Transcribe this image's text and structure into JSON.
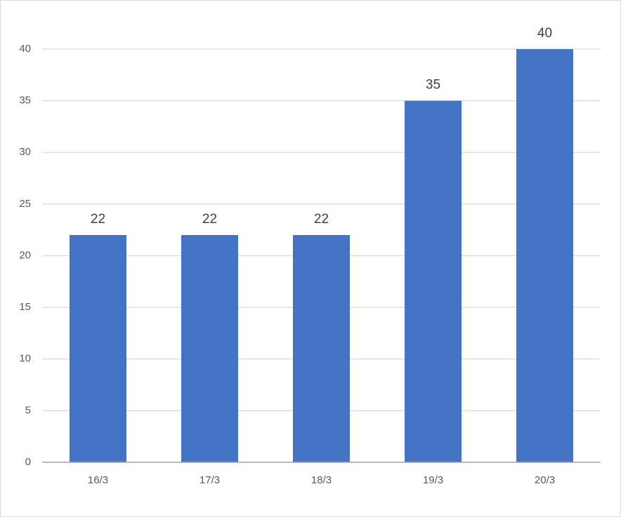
{
  "chart_data": {
    "type": "bar",
    "categories": [
      "16/3",
      "17/3",
      "18/3",
      "19/3",
      "20/3"
    ],
    "values": [
      22,
      22,
      22,
      35,
      40
    ],
    "color": "#4472c4",
    "ylim": [
      0,
      40
    ],
    "yticks": [
      0,
      5,
      10,
      15,
      20,
      25,
      30,
      35,
      40
    ],
    "grid": true,
    "data_labels": true
  }
}
